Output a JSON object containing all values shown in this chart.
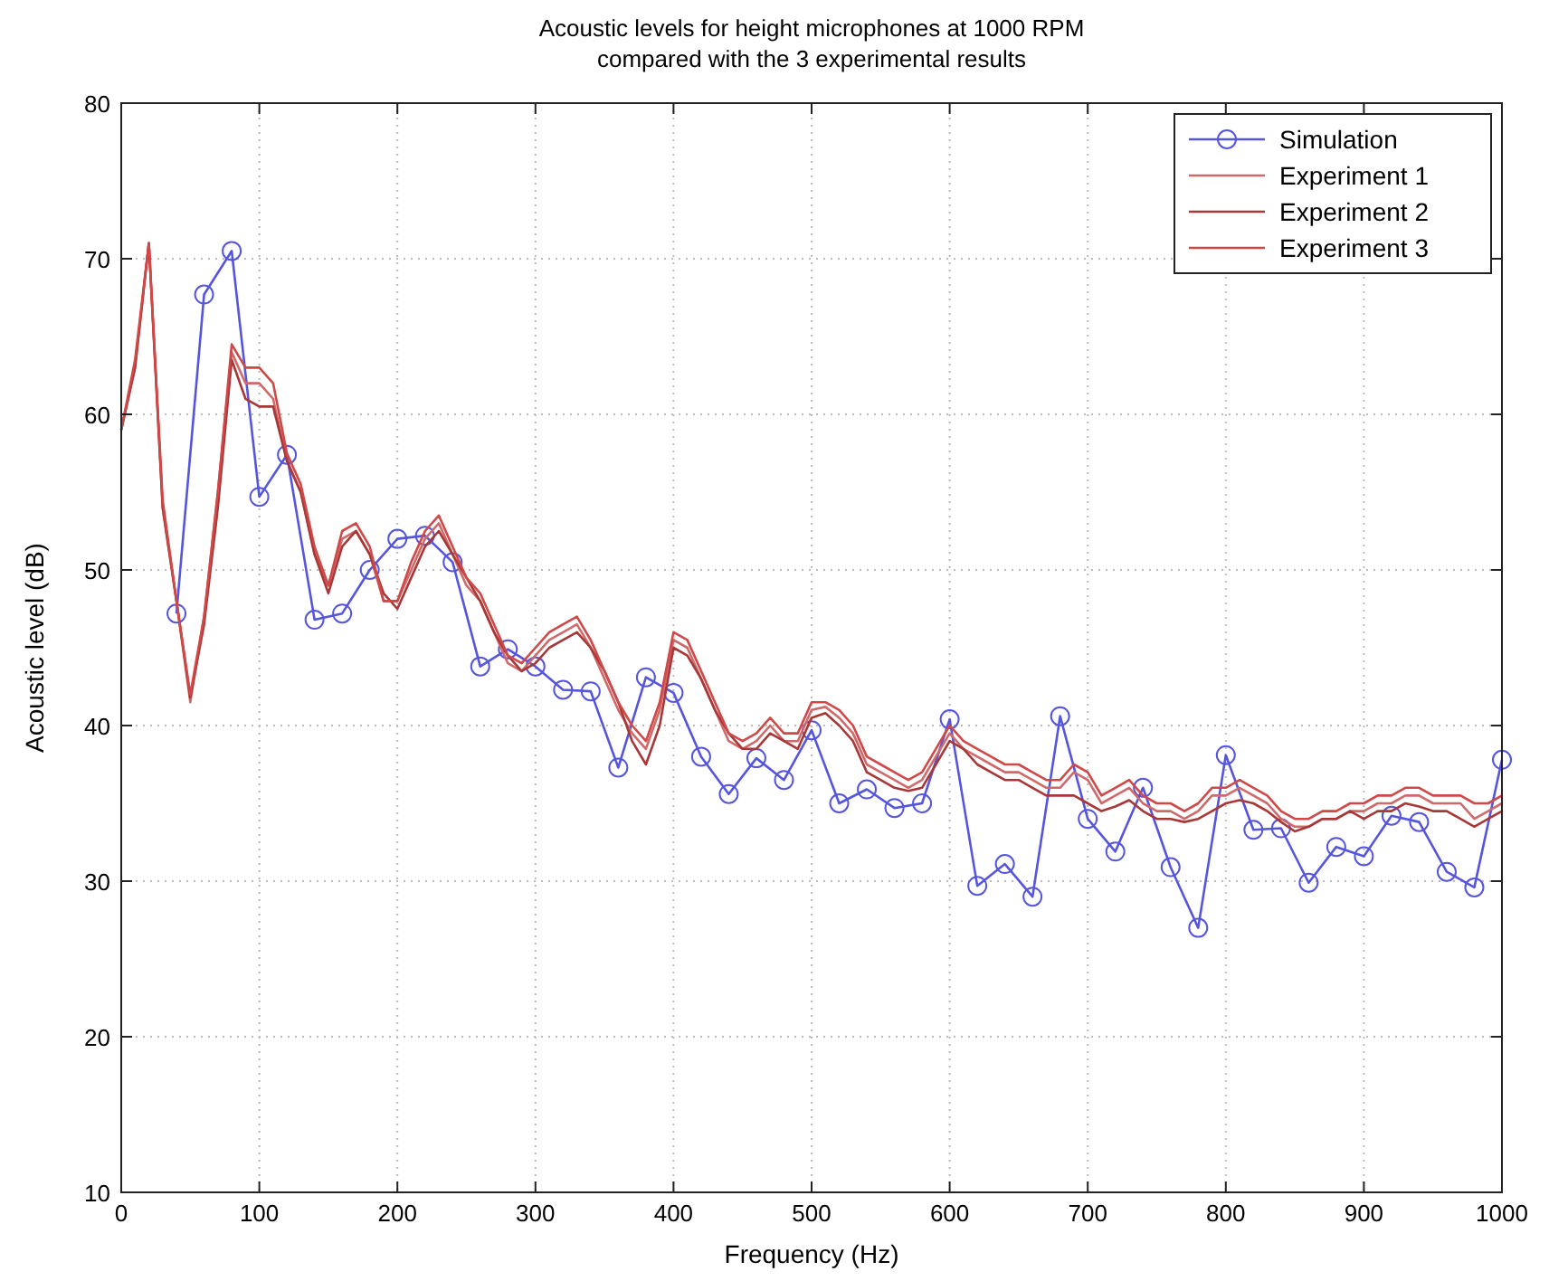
{
  "chart_data": {
    "type": "line",
    "title": "Acoustic levels for height microphones at 1000 RPM\ncompared with the 3 experimental results",
    "xlabel": "Frequency (Hz)",
    "ylabel": "Acoustic level (dB)",
    "xlim": [
      0,
      1000
    ],
    "xticks": [
      0,
      100,
      200,
      300,
      400,
      500,
      600,
      700,
      800,
      900,
      1000
    ],
    "ylim": [
      10,
      80
    ],
    "yticks": [
      10,
      20,
      30,
      40,
      50,
      60,
      70,
      80
    ],
    "grid": true,
    "legend": "top right",
    "series": [
      {
        "name": "Simulation",
        "color": "#5555dd",
        "marker": "circle",
        "x": [
          40,
          60,
          80,
          100,
          120,
          140,
          160,
          180,
          200,
          220,
          240,
          260,
          280,
          300,
          320,
          340,
          360,
          380,
          400,
          420,
          440,
          460,
          480,
          500,
          520,
          540,
          560,
          580,
          600,
          620,
          640,
          660,
          680,
          700,
          720,
          740,
          760,
          780,
          800,
          820,
          840,
          860,
          880,
          900,
          920,
          940,
          960,
          980,
          1000
        ],
        "values": [
          47.2,
          67.7,
          70.5,
          54.7,
          57.4,
          46.8,
          47.2,
          50.0,
          52.0,
          52.2,
          50.5,
          43.8,
          44.9,
          43.8,
          42.3,
          42.2,
          37.3,
          43.1,
          42.1,
          38.0,
          35.6,
          37.9,
          36.5,
          39.7,
          35.0,
          35.9,
          34.7,
          35.0,
          40.4,
          29.7,
          31.1,
          29.0,
          40.6,
          34.0,
          31.9,
          36.0,
          30.9,
          27.0,
          38.1,
          33.3,
          33.4,
          29.9,
          32.2,
          31.6,
          34.2,
          33.8,
          30.6,
          29.6,
          37.8
        ]
      },
      {
        "name": "Experiment 1",
        "color": "#d06a6a",
        "marker": "none",
        "values": [
          59,
          63,
          71,
          54,
          48,
          41.5,
          47,
          55,
          64,
          62,
          62,
          61,
          57,
          55,
          51,
          49,
          52,
          52.5,
          51,
          48,
          48,
          50,
          52,
          53,
          51,
          49,
          48,
          46,
          44,
          43.5,
          44.5,
          45.5,
          46,
          46.5,
          45,
          43,
          41,
          39.5,
          38.5,
          41,
          45.5,
          45,
          43,
          41,
          39,
          38.5,
          39,
          40,
          39,
          39,
          41,
          41.2,
          40.5,
          39.5,
          37.5,
          37,
          36.5,
          36,
          36.5,
          38,
          39.5,
          38.5,
          38,
          37.5,
          37,
          37,
          36.5,
          36,
          36,
          37,
          36.5,
          35,
          35.5,
          36,
          35,
          34.5,
          34.5,
          34,
          34.5,
          35.5,
          35.5,
          36,
          35.5,
          35,
          34,
          33.5,
          33.5,
          34,
          34,
          34.5,
          34.5,
          35,
          35,
          35.5,
          35.5,
          35,
          35,
          35,
          34,
          34.5,
          35
        ]
      },
      {
        "name": "Experiment 2",
        "color": "#a83838",
        "marker": "none",
        "values": [
          59,
          63,
          71,
          54,
          48,
          41.8,
          46.5,
          54,
          63.5,
          61,
          60.5,
          60.5,
          57,
          55,
          51,
          48.5,
          51.5,
          52.5,
          51,
          48.5,
          47.5,
          49.5,
          51.5,
          52.5,
          51,
          49.5,
          48,
          46,
          44.5,
          43.5,
          44,
          45,
          45.5,
          46,
          45,
          43.5,
          41.5,
          39,
          37.5,
          40,
          45,
          44.5,
          43,
          41,
          39.5,
          38.5,
          38.5,
          39.5,
          39,
          38.5,
          40.5,
          40.8,
          40,
          39,
          37,
          36.5,
          36,
          35.8,
          36,
          37.5,
          39,
          38.5,
          37.5,
          37,
          36.5,
          36.5,
          36,
          35.5,
          35.5,
          35.5,
          35,
          34.5,
          34.8,
          35.2,
          34.5,
          34,
          34,
          33.8,
          34,
          34.5,
          35,
          35.2,
          35,
          34.5,
          33.8,
          33.2,
          33.5,
          34,
          34,
          34.5,
          34,
          34.5,
          34.5,
          35,
          34.8,
          34.5,
          34.5,
          34,
          33.5,
          34,
          34.5
        ]
      },
      {
        "name": "Experiment 3",
        "color": "#d04848",
        "marker": "none",
        "values": [
          59,
          63.5,
          71,
          54.5,
          48,
          42,
          47,
          55,
          64.5,
          63,
          63,
          62,
          57.5,
          55.5,
          51.5,
          49,
          52.5,
          53,
          51.5,
          48,
          48,
          50.5,
          52.5,
          53.5,
          51.5,
          49.5,
          48.5,
          46.5,
          44.5,
          44,
          45,
          46,
          46.5,
          47,
          45.5,
          43.5,
          41.5,
          40,
          39,
          41.5,
          46,
          45.5,
          43.5,
          41.5,
          39.5,
          39,
          39.5,
          40.5,
          39.5,
          39.5,
          41.5,
          41.5,
          41,
          40,
          38,
          37.5,
          37,
          36.5,
          37,
          38.5,
          40,
          39,
          38.5,
          38,
          37.5,
          37.5,
          37,
          36.5,
          36.5,
          37.5,
          37,
          35.5,
          36,
          36.5,
          35.5,
          35,
          35,
          34.5,
          35,
          36,
          36,
          36.5,
          36,
          35.5,
          34.5,
          34,
          34,
          34.5,
          34.5,
          35,
          35,
          35.5,
          35.5,
          36,
          36,
          35.5,
          35.5,
          35.5,
          35,
          35,
          35.5
        ]
      }
    ],
    "x": [
      0,
      10,
      20,
      30,
      40,
      50,
      60,
      70,
      80,
      90,
      100,
      110,
      120,
      130,
      140,
      150,
      160,
      170,
      180,
      190,
      200,
      210,
      220,
      230,
      240,
      250,
      260,
      270,
      280,
      290,
      300,
      310,
      320,
      330,
      340,
      350,
      360,
      370,
      380,
      390,
      400,
      410,
      420,
      430,
      440,
      450,
      460,
      470,
      480,
      490,
      500,
      510,
      520,
      530,
      540,
      550,
      560,
      570,
      580,
      590,
      600,
      610,
      620,
      630,
      640,
      650,
      660,
      670,
      680,
      690,
      700,
      710,
      720,
      730,
      740,
      750,
      760,
      770,
      780,
      790,
      800,
      810,
      820,
      830,
      840,
      850,
      860,
      870,
      880,
      890,
      900,
      910,
      920,
      930,
      940,
      950,
      960,
      970,
      980,
      990,
      1000
    ]
  }
}
